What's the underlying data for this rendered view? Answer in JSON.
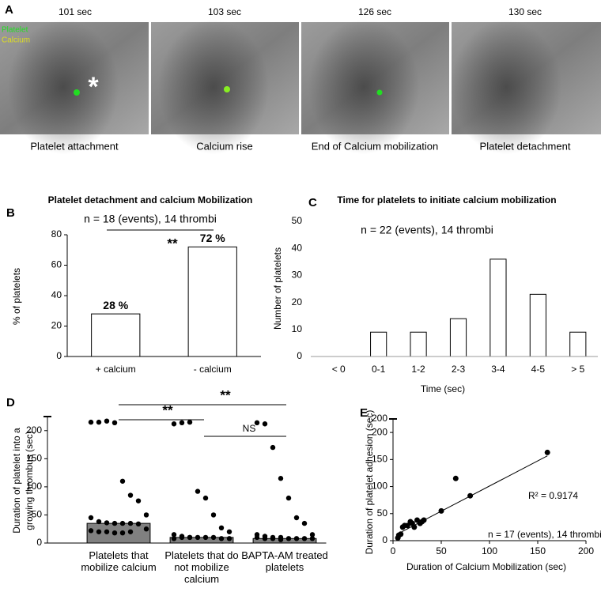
{
  "panel_a": {
    "label": "A",
    "legend": [
      "Platelet",
      "Calcium"
    ],
    "marker": "*",
    "frames": [
      {
        "time": "101 sec",
        "caption": "Platelet attachment"
      },
      {
        "time": "103 sec",
        "caption": "Calcium rise"
      },
      {
        "time": "126 sec",
        "caption": "End of Calcium mobilization"
      },
      {
        "time": "130 sec",
        "caption": "Platelet detachment"
      }
    ]
  },
  "chart_data": [
    {
      "type": "bar",
      "panel_label": "B",
      "title": "Platelet detachment and calcium Mobilization",
      "subtitle": "n = 18 (events), 14 thrombi",
      "categories": [
        "+ calcium",
        "- calcium"
      ],
      "values": [
        28,
        72
      ],
      "value_labels": [
        "28 %",
        "72 %"
      ],
      "color": "#ffffff",
      "ylabel": "% of platelets",
      "ylim": [
        0,
        80
      ],
      "yticks": [
        0,
        20,
        40,
        60,
        80
      ],
      "annotations": [
        "**"
      ]
    },
    {
      "type": "bar",
      "panel_label": "C",
      "title": "Time for platelets to initiate calcium mobilization",
      "subtitle": "n = 22 (events), 14 thrombi",
      "categories": [
        "< 0",
        "0-1",
        "1-2",
        "2-3",
        "3-4",
        "4-5",
        "> 5"
      ],
      "values": [
        0,
        9,
        9,
        14,
        36,
        23,
        9
      ],
      "color": "#ffffff",
      "xlabel": "Time (sec)",
      "ylabel": "Number of platelets",
      "ylim": [
        0,
        50
      ],
      "yticks": [
        0,
        10,
        20,
        30,
        40,
        50
      ]
    },
    {
      "type": "bar_dot",
      "panel_label": "D",
      "categories": [
        "Platelets that mobilize calcium",
        "Platelets that do not mobilize calcium",
        "BAPTA-AM treated platelets"
      ],
      "values": [
        35,
        10,
        8
      ],
      "color": "#808080",
      "points_color": "#000000",
      "points": [
        [
          215,
          215,
          217,
          214,
          110,
          85,
          75,
          50,
          45,
          38,
          36,
          35,
          35,
          35,
          34,
          25,
          22,
          20,
          20,
          18,
          18,
          20
        ],
        [
          212,
          214,
          215,
          92,
          80,
          50,
          27,
          20,
          15,
          12,
          10,
          10,
          10,
          10,
          8,
          8,
          8,
          10,
          10
        ],
        [
          214,
          212,
          170,
          115,
          80,
          45,
          35,
          15,
          15,
          12,
          10,
          10,
          8,
          8,
          8,
          8,
          10,
          8,
          8,
          6
        ]
      ],
      "ylabel": [
        "Duration of platelet into a",
        "growing thrombus (sec)"
      ],
      "ylim": [
        0,
        225
      ],
      "yticks": [
        0,
        50,
        100,
        150,
        200
      ],
      "annotations": [
        "**",
        "**",
        "NS"
      ]
    },
    {
      "type": "scatter",
      "panel_label": "E",
      "x": [
        5,
        6,
        8,
        10,
        12,
        15,
        18,
        20,
        22,
        25,
        28,
        30,
        32,
        50,
        65,
        80,
        160
      ],
      "y": [
        5,
        10,
        12,
        25,
        28,
        28,
        35,
        32,
        25,
        38,
        32,
        35,
        38,
        55,
        115,
        83,
        163
      ],
      "color": "#000000",
      "xlabel": "Duration of Calcium Mobilization (sec)",
      "ylabel": "Duration of platelet adhesion (sec)",
      "xlim": [
        0,
        200
      ],
      "xticks": [
        0,
        50,
        100,
        150,
        200
      ],
      "ylim": [
        0,
        225
      ],
      "yticks": [
        0,
        50,
        100,
        150,
        200
      ],
      "y_break_label": "200",
      "trendline": {
        "slope": 0.93,
        "intercept": 8
      },
      "annotations": [
        "R² = 0.9174",
        "n = 17 (events), 14 thrombi"
      ]
    }
  ]
}
